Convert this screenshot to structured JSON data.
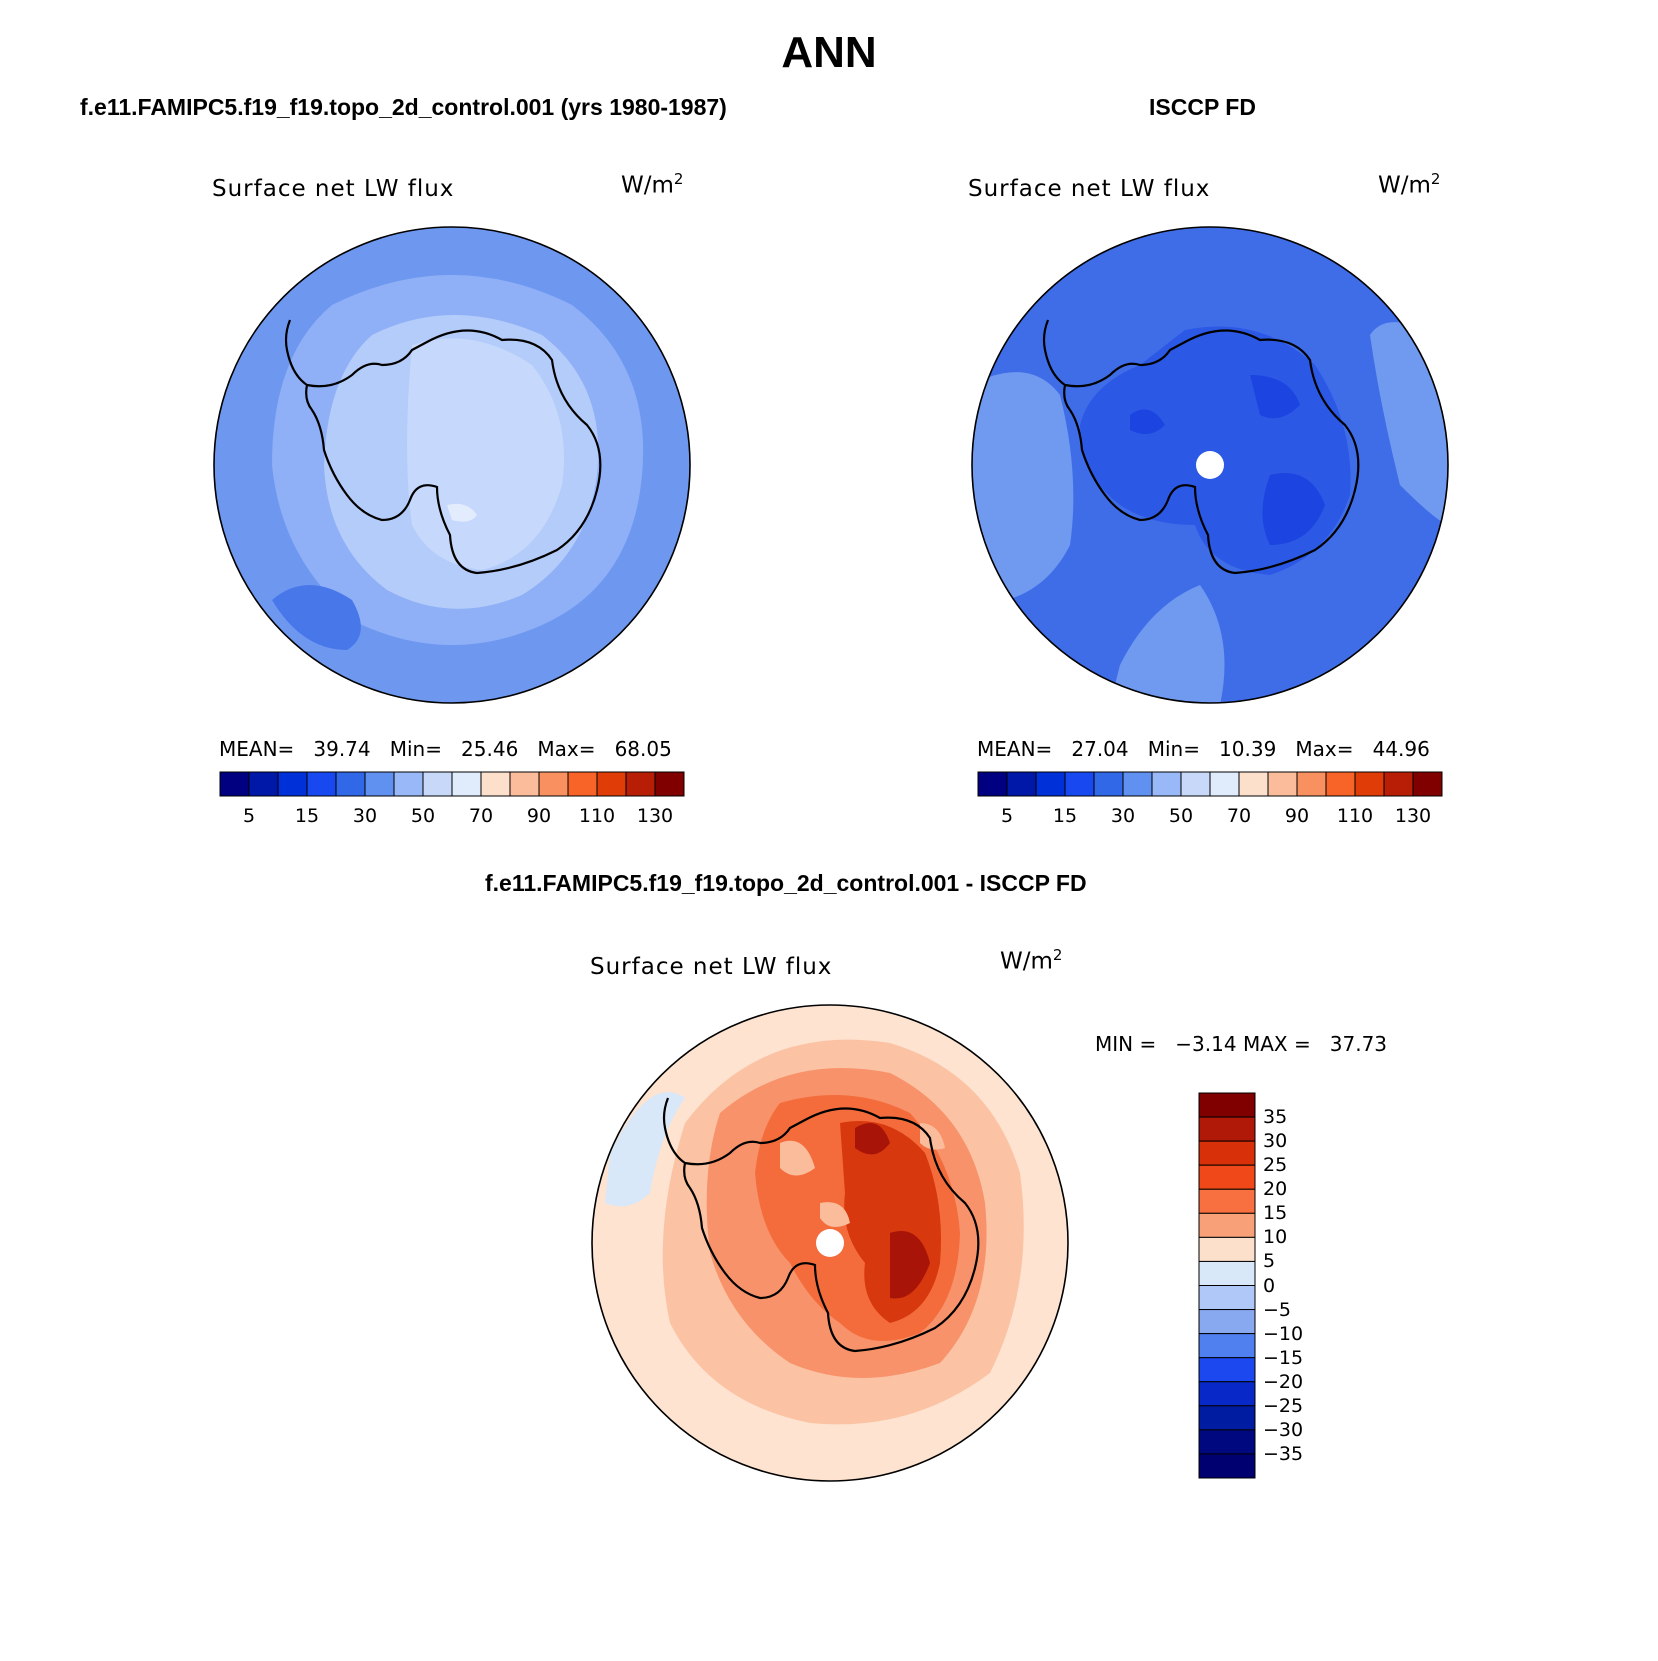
{
  "figure": {
    "title": "ANN",
    "diff_title": "f.e11.FAMIPC5.f19_f19.topo_2d_control.001 - ISCCP FD"
  },
  "panels": [
    {
      "title": "f.e11.FAMIPC5.f19_f19.topo_2d_control.001 (yrs 1980-1987)",
      "variable": "Surface net LW flux",
      "units": "W/m",
      "units_exp": "2",
      "mean_label": "MEAN=",
      "mean": "39.74",
      "min_label": "Min=",
      "min": "25.46",
      "max_label": "Max=",
      "max": "68.05"
    },
    {
      "title": "ISCCP FD",
      "variable": "Surface net LW flux",
      "units": "W/m",
      "units_exp": "2",
      "mean_label": "MEAN=",
      "mean": "27.04",
      "min_label": "Min=",
      "min": "10.39",
      "max_label": "Max=",
      "max": "44.96"
    },
    {
      "variable": "Surface net LW flux",
      "units": "W/m",
      "units_exp": "2",
      "minmax_label": "MIN =   −3.14 MAX =   37.73"
    }
  ],
  "chart_data": [
    {
      "type": "heatmap",
      "name": "model",
      "projection": "south polar stereographic",
      "variable": "Surface net LW flux",
      "units": "W/m^2",
      "stats": {
        "mean": 39.74,
        "min": 25.46,
        "max": 68.05
      },
      "colorbar": {
        "orientation": "horizontal",
        "levels": [
          5,
          10,
          15,
          20,
          30,
          40,
          50,
          60,
          70,
          80,
          90,
          100,
          110,
          120,
          130
        ],
        "tick_labels": [
          "5",
          "15",
          "30",
          "50",
          "70",
          "90",
          "110",
          "130"
        ],
        "colors": [
          "#000080",
          "#0018a8",
          "#0030d8",
          "#1848f0",
          "#3068e8",
          "#6090f0",
          "#98b8f8",
          "#c8d8f8",
          "#e0ecfc",
          "#fde0cc",
          "#fbbc9c",
          "#f89060",
          "#f86428",
          "#e03c08",
          "#b81e06",
          "#800000"
        ]
      }
    },
    {
      "type": "heatmap",
      "name": "observations",
      "projection": "south polar stereographic",
      "variable": "Surface net LW flux",
      "units": "W/m^2",
      "stats": {
        "mean": 27.04,
        "min": 10.39,
        "max": 44.96
      },
      "colorbar": {
        "orientation": "horizontal",
        "levels": [
          5,
          10,
          15,
          20,
          30,
          40,
          50,
          60,
          70,
          80,
          90,
          100,
          110,
          120,
          130
        ],
        "tick_labels": [
          "5",
          "15",
          "30",
          "50",
          "70",
          "90",
          "110",
          "130"
        ],
        "colors": [
          "#000080",
          "#0018a8",
          "#0030d8",
          "#1848f0",
          "#3068e8",
          "#6090f0",
          "#98b8f8",
          "#c8d8f8",
          "#e0ecfc",
          "#fde0cc",
          "#fbbc9c",
          "#f89060",
          "#f86428",
          "#e03c08",
          "#b81e06",
          "#800000"
        ]
      }
    },
    {
      "type": "heatmap",
      "name": "difference",
      "projection": "south polar stereographic",
      "variable": "Surface net LW flux",
      "units": "W/m^2",
      "stats": {
        "min": -3.14,
        "max": 37.73
      },
      "colorbar": {
        "orientation": "vertical",
        "levels": [
          35,
          30,
          25,
          20,
          15,
          10,
          5,
          0,
          -5,
          -10,
          -15,
          -20,
          -25,
          -30,
          -35
        ],
        "tick_labels": [
          "35",
          "30",
          "25",
          "20",
          "15",
          "10",
          "5",
          "0",
          "−5",
          "−10",
          "−15",
          "−20",
          "−25",
          "−30",
          "−35"
        ],
        "colors": [
          "#800000",
          "#b01808",
          "#d83008",
          "#f04818",
          "#f87040",
          "#f8a078",
          "#fde0cc",
          "#d8e8f8",
          "#b0c8f8",
          "#88a8f0",
          "#5080f0",
          "#1c48f0",
          "#0828c8",
          "#001ca0",
          "#000880",
          "#000070"
        ]
      }
    }
  ]
}
